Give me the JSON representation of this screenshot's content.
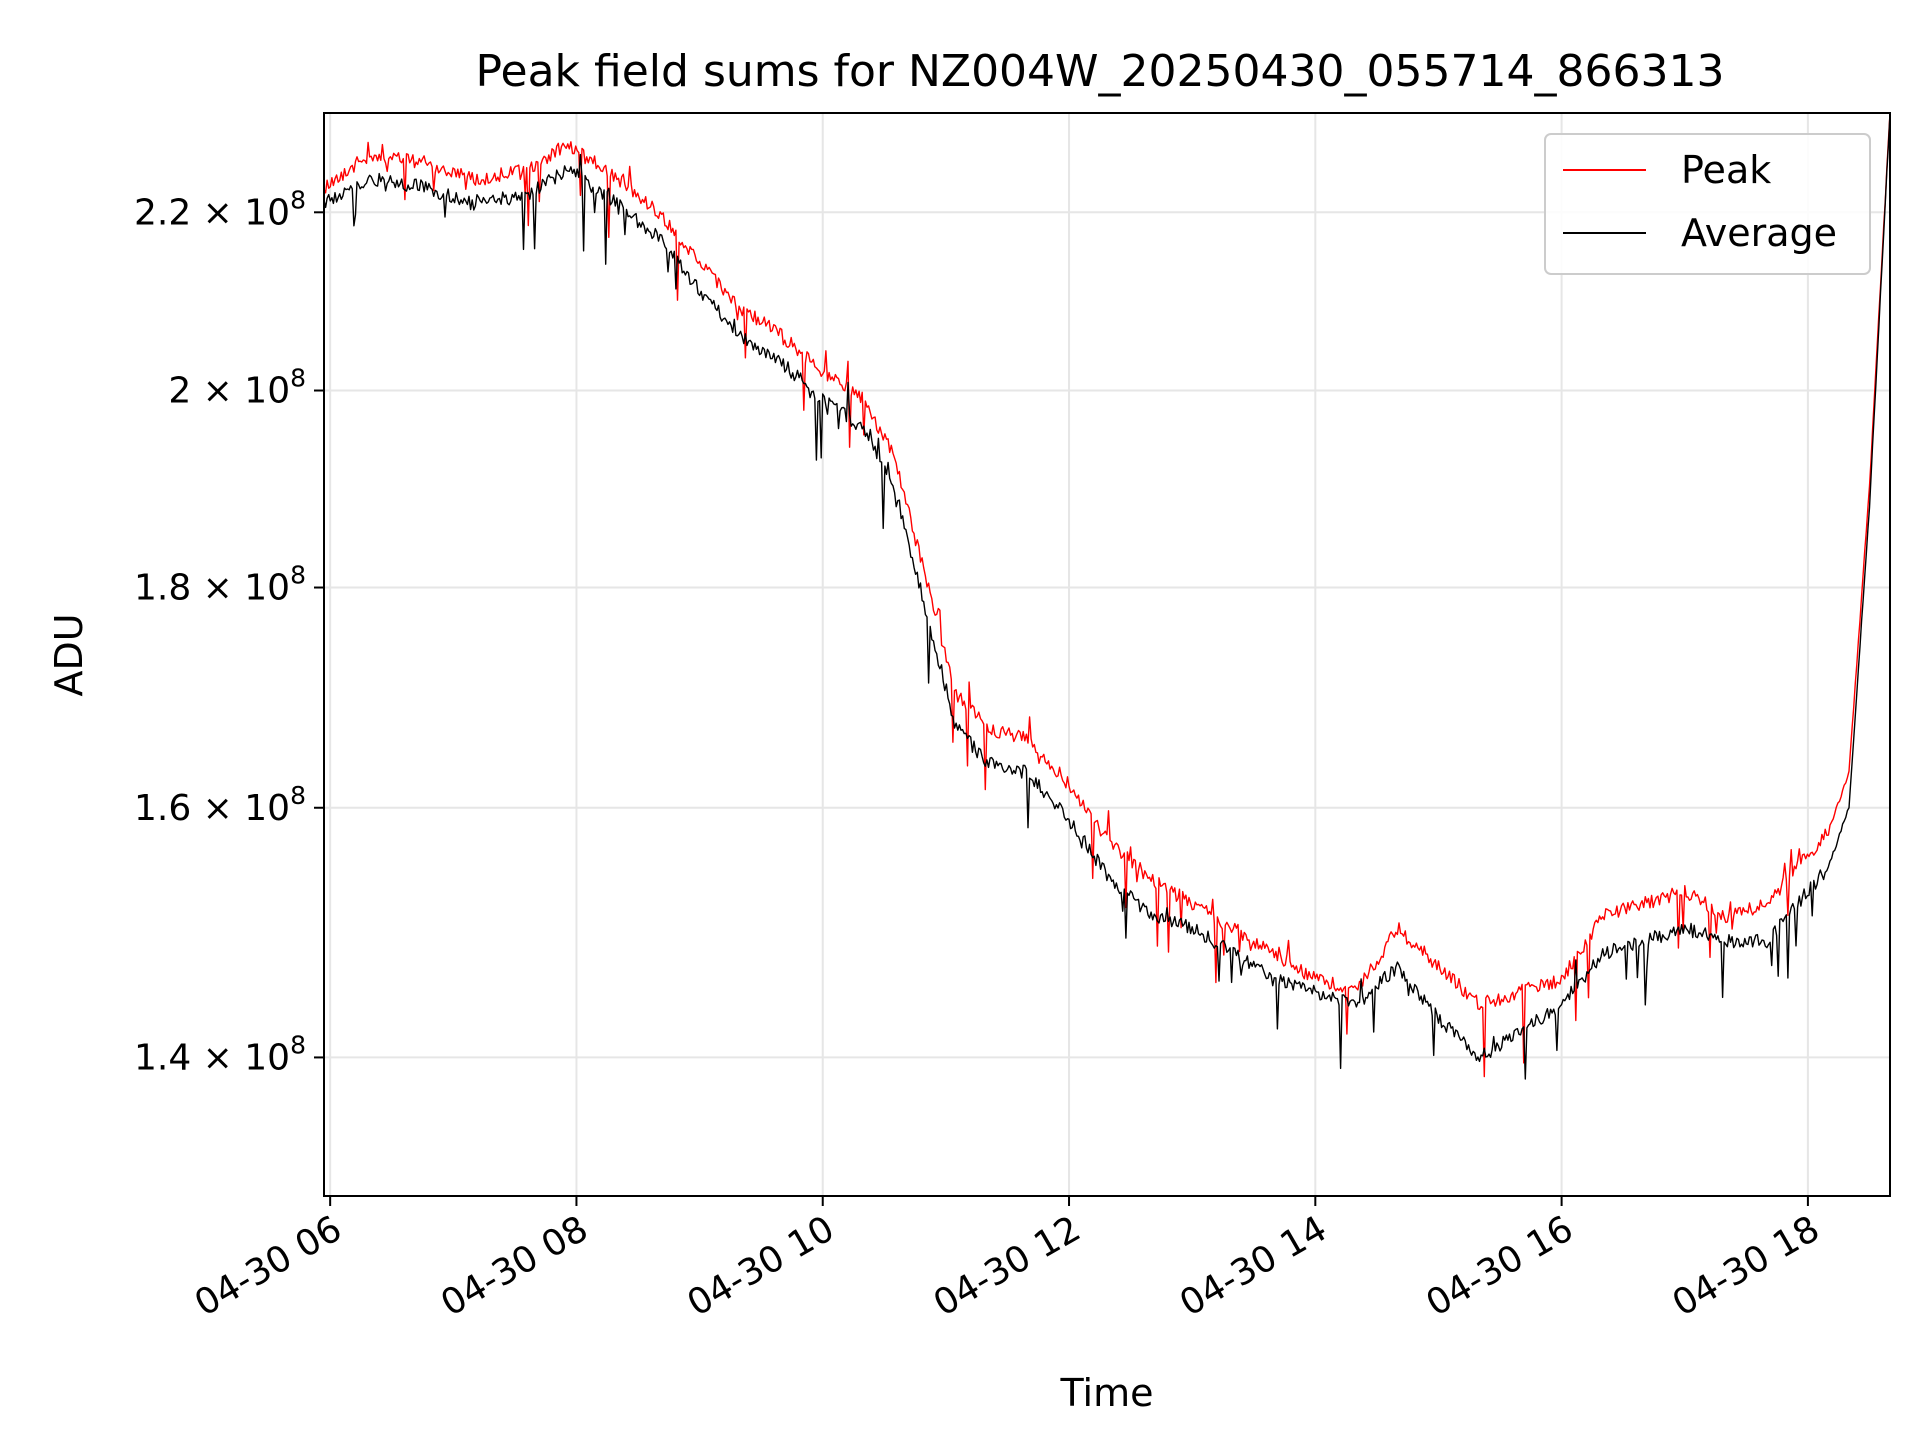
{
  "chart_data": {
    "type": "line",
    "title": "Peak field sums for NZ004W_20250430_055714_866313",
    "xlabel": "Time",
    "ylabel": "ADU",
    "yscale": "log",
    "ylim": [
      130000000,
      232000000
    ],
    "xlim": [
      "2025-04-30 05:57",
      "2025-04-30 18:40"
    ],
    "grid": true,
    "legend_position": "upper right",
    "x_ticks": [
      {
        "value": "2025-04-30 06:00",
        "label": "04-30 06"
      },
      {
        "value": "2025-04-30 08:00",
        "label": "04-30 08"
      },
      {
        "value": "2025-04-30 10:00",
        "label": "04-30 10"
      },
      {
        "value": "2025-04-30 12:00",
        "label": "04-30 12"
      },
      {
        "value": "2025-04-30 14:00",
        "label": "04-30 14"
      },
      {
        "value": "2025-04-30 16:00",
        "label": "04-30 16"
      },
      {
        "value": "2025-04-30 18:00",
        "label": "04-30 18"
      }
    ],
    "y_ticks": [
      {
        "value": 140000000,
        "mantissa": "1.4",
        "base": "10",
        "exponent": "8"
      },
      {
        "value": 160000000,
        "mantissa": "1.6",
        "base": "10",
        "exponent": "8"
      },
      {
        "value": 180000000,
        "mantissa": "1.8",
        "base": "10",
        "exponent": "8"
      },
      {
        "value": 200000000,
        "mantissa": "2",
        "base": "10",
        "exponent": "8"
      },
      {
        "value": 220000000,
        "mantissa": "2.2",
        "base": "10",
        "exponent": "8"
      }
    ],
    "series": [
      {
        "name": "Peak",
        "color": "#ff0000",
        "x": [
          "2025-04-30 05:57",
          "2025-04-30 06:20",
          "2025-04-30 06:45",
          "2025-04-30 07:10",
          "2025-04-30 07:35",
          "2025-04-30 07:55",
          "2025-04-30 08:15",
          "2025-04-30 08:40",
          "2025-04-30 09:00",
          "2025-04-30 09:20",
          "2025-04-30 09:40",
          "2025-04-30 10:00",
          "2025-04-30 10:20",
          "2025-04-30 10:35",
          "2025-04-30 10:50",
          "2025-04-30 11:05",
          "2025-04-30 11:20",
          "2025-04-30 11:40",
          "2025-04-30 12:00",
          "2025-04-30 12:20",
          "2025-04-30 12:40",
          "2025-04-30 13:00",
          "2025-04-30 13:20",
          "2025-04-30 13:40",
          "2025-04-30 14:00",
          "2025-04-30 14:20",
          "2025-04-30 14:40",
          "2025-04-30 15:00",
          "2025-04-30 15:20",
          "2025-04-30 15:40",
          "2025-04-30 16:00",
          "2025-04-30 16:20",
          "2025-04-30 16:40",
          "2025-04-30 17:00",
          "2025-04-30 17:20",
          "2025-04-30 17:40",
          "2025-04-30 17:55",
          "2025-04-30 18:10",
          "2025-04-30 18:20",
          "2025-04-30 18:30",
          "2025-04-30 18:40"
        ],
        "values": [
          223000000,
          227000000,
          226000000,
          224000000,
          225000000,
          228000000,
          225000000,
          220000000,
          214000000,
          209000000,
          206000000,
          202000000,
          199000000,
          193000000,
          181000000,
          170000000,
          167000000,
          166000000,
          162000000,
          157000000,
          154000000,
          152000000,
          150000000,
          148000000,
          146000000,
          145000000,
          150000000,
          147000000,
          144000000,
          145000000,
          146000000,
          151000000,
          152000000,
          153000000,
          151000000,
          152000000,
          155000000,
          158000000,
          163000000,
          190000000,
          232000000
        ]
      },
      {
        "name": "Average",
        "color": "#000000",
        "x": [
          "2025-04-30 05:57",
          "2025-04-30 06:20",
          "2025-04-30 06:45",
          "2025-04-30 07:10",
          "2025-04-30 07:35",
          "2025-04-30 07:55",
          "2025-04-30 08:15",
          "2025-04-30 08:40",
          "2025-04-30 09:00",
          "2025-04-30 09:20",
          "2025-04-30 09:40",
          "2025-04-30 10:00",
          "2025-04-30 10:20",
          "2025-04-30 10:35",
          "2025-04-30 10:50",
          "2025-04-30 11:05",
          "2025-04-30 11:20",
          "2025-04-30 11:40",
          "2025-04-30 12:00",
          "2025-04-30 12:20",
          "2025-04-30 12:40",
          "2025-04-30 13:00",
          "2025-04-30 13:20",
          "2025-04-30 13:40",
          "2025-04-30 14:00",
          "2025-04-30 14:20",
          "2025-04-30 14:40",
          "2025-04-30 15:00",
          "2025-04-30 15:20",
          "2025-04-30 15:40",
          "2025-04-30 16:00",
          "2025-04-30 16:20",
          "2025-04-30 16:40",
          "2025-04-30 17:00",
          "2025-04-30 17:20",
          "2025-04-30 17:40",
          "2025-04-30 17:55",
          "2025-04-30 18:10",
          "2025-04-30 18:20",
          "2025-04-30 18:30",
          "2025-04-30 18:40"
        ],
        "values": [
          221000000,
          224000000,
          223000000,
          221000000,
          222000000,
          225000000,
          222000000,
          217000000,
          211000000,
          206000000,
          203000000,
          199000000,
          196000000,
          190000000,
          178000000,
          167000000,
          164000000,
          163000000,
          159000000,
          154000000,
          151000000,
          150000000,
          148000000,
          146000000,
          145000000,
          144000000,
          147000000,
          143000000,
          140000000,
          142000000,
          144000000,
          148000000,
          149000000,
          150000000,
          149000000,
          149000000,
          152000000,
          155000000,
          160000000,
          188000000,
          232000000
        ]
      }
    ]
  }
}
